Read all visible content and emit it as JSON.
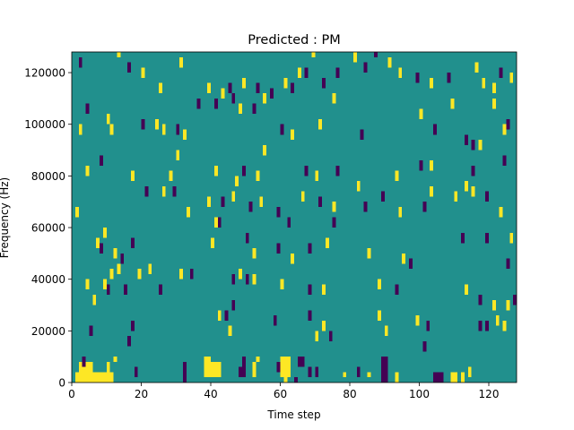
{
  "chart_data": {
    "type": "heatmap",
    "title": "Predicted : PM",
    "xlabel": "Time step",
    "ylabel": "Frequency (Hz)",
    "xlim": [
      0,
      128
    ],
    "ylim": [
      0,
      128000
    ],
    "xticks": [
      0,
      20,
      40,
      60,
      80,
      100,
      120
    ],
    "yticks": [
      0,
      20000,
      40000,
      60000,
      80000,
      100000,
      120000
    ],
    "grid": false,
    "colormap": "viridis",
    "colors": {
      "background": "#21908d",
      "high": "#fde725",
      "low": "#440154"
    },
    "background_value": 0,
    "cells_units": "[time_step_start, time_step_end, freq_start_hz, freq_end_hz, value]",
    "cells": [
      [
        1,
        12,
        0,
        4000,
        1
      ],
      [
        2,
        4,
        4000,
        8000,
        1
      ],
      [
        4,
        6,
        4000,
        8000,
        1
      ],
      [
        10,
        11,
        4000,
        8000,
        1
      ],
      [
        32,
        33,
        0,
        8000,
        -1
      ],
      [
        39,
        43,
        6000,
        8000,
        1
      ],
      [
        38,
        43,
        2000,
        6000,
        1
      ],
      [
        38,
        40,
        6000,
        10000,
        1
      ],
      [
        49,
        50,
        6000,
        10000,
        -1
      ],
      [
        48,
        50,
        2000,
        6000,
        -1
      ],
      [
        52,
        53,
        2000,
        8000,
        1
      ],
      [
        53,
        54,
        8000,
        10000,
        1
      ],
      [
        59,
        60,
        4000,
        8000,
        -1
      ],
      [
        60,
        63,
        2000,
        10000,
        1
      ],
      [
        61,
        62,
        0,
        2000,
        1
      ],
      [
        64,
        65,
        0,
        2000,
        -1
      ],
      [
        65,
        67,
        6000,
        10000,
        -1
      ],
      [
        68,
        69,
        2000,
        6000,
        -1
      ],
      [
        70,
        71,
        2000,
        6000,
        -1
      ],
      [
        78,
        79,
        2000,
        4000,
        1
      ],
      [
        82,
        83,
        2000,
        6000,
        -1
      ],
      [
        85,
        86,
        2000,
        4000,
        1
      ],
      [
        89,
        91,
        0,
        10000,
        -1
      ],
      [
        93,
        94,
        0,
        4000,
        1
      ],
      [
        104,
        107,
        0,
        4000,
        -1
      ],
      [
        109,
        111,
        0,
        4000,
        1
      ],
      [
        112,
        113,
        0,
        4000,
        1
      ],
      [
        114,
        115,
        2000,
        6000,
        1
      ],
      [
        3,
        4,
        6000,
        10000,
        -1
      ],
      [
        12,
        13,
        8000,
        10000,
        1
      ],
      [
        18,
        19,
        2000,
        6000,
        -1
      ],
      [
        5,
        6,
        18000,
        22000,
        -1
      ],
      [
        16,
        17,
        14000,
        18000,
        -1
      ],
      [
        17,
        18,
        20000,
        24000,
        -1
      ],
      [
        42,
        43,
        24000,
        28000,
        1
      ],
      [
        44,
        45,
        24000,
        28000,
        -1
      ],
      [
        45,
        46,
        18000,
        22000,
        1
      ],
      [
        46,
        47,
        28000,
        32000,
        -1
      ],
      [
        58,
        59,
        22000,
        26000,
        -1
      ],
      [
        68,
        69,
        24000,
        28000,
        -1
      ],
      [
        70,
        71,
        16000,
        20000,
        1
      ],
      [
        72,
        73,
        20000,
        24000,
        1
      ],
      [
        74,
        75,
        16000,
        20000,
        -1
      ],
      [
        88,
        89,
        24000,
        28000,
        1
      ],
      [
        90,
        91,
        18000,
        22000,
        1
      ],
      [
        99,
        100,
        22000,
        26000,
        1
      ],
      [
        101,
        102,
        12000,
        16000,
        -1
      ],
      [
        102,
        103,
        20000,
        24000,
        -1
      ],
      [
        117,
        118,
        20000,
        24000,
        -1
      ],
      [
        119,
        120,
        20000,
        24000,
        -1
      ],
      [
        122,
        123,
        22000,
        26000,
        1
      ],
      [
        124,
        125,
        20000,
        24000,
        1
      ],
      [
        4,
        5,
        36000,
        40000,
        1
      ],
      [
        6,
        7,
        30000,
        34000,
        1
      ],
      [
        9,
        10,
        36000,
        40000,
        1
      ],
      [
        10,
        11,
        34000,
        38000,
        -1
      ],
      [
        11,
        12,
        40000,
        44000,
        1
      ],
      [
        13,
        14,
        42000,
        46000,
        1
      ],
      [
        15,
        16,
        34000,
        38000,
        -1
      ],
      [
        19,
        20,
        40000,
        44000,
        1
      ],
      [
        22,
        23,
        42000,
        46000,
        1
      ],
      [
        25,
        26,
        34000,
        38000,
        -1
      ],
      [
        31,
        32,
        40000,
        44000,
        1
      ],
      [
        34,
        35,
        40000,
        44000,
        -1
      ],
      [
        46,
        47,
        38000,
        42000,
        -1
      ],
      [
        48,
        49,
        40000,
        44000,
        1
      ],
      [
        50,
        51,
        38000,
        42000,
        -1
      ],
      [
        52,
        53,
        38000,
        42000,
        1
      ],
      [
        60,
        61,
        36000,
        40000,
        1
      ],
      [
        68,
        69,
        34000,
        38000,
        -1
      ],
      [
        72,
        73,
        34000,
        38000,
        1
      ],
      [
        88,
        89,
        36000,
        40000,
        1
      ],
      [
        93,
        94,
        34000,
        38000,
        -1
      ],
      [
        113,
        114,
        34000,
        38000,
        1
      ],
      [
        117,
        118,
        30000,
        34000,
        -1
      ],
      [
        121,
        122,
        28000,
        32000,
        1
      ],
      [
        125,
        126,
        28000,
        32000,
        1
      ],
      [
        127,
        128,
        30000,
        34000,
        -1
      ],
      [
        8,
        9,
        50000,
        54000,
        -1
      ],
      [
        12,
        13,
        48000,
        52000,
        1
      ],
      [
        14,
        15,
        46000,
        50000,
        -1
      ],
      [
        17,
        18,
        52000,
        56000,
        -1
      ],
      [
        40,
        41,
        52000,
        56000,
        1
      ],
      [
        42,
        43,
        60000,
        64000,
        -1
      ],
      [
        50,
        51,
        54000,
        58000,
        -1
      ],
      [
        52,
        53,
        48000,
        52000,
        1
      ],
      [
        59,
        60,
        50000,
        54000,
        -1
      ],
      [
        63,
        64,
        46000,
        50000,
        1
      ],
      [
        68,
        69,
        50000,
        54000,
        -1
      ],
      [
        73,
        74,
        52000,
        56000,
        1
      ],
      [
        75,
        76,
        60000,
        64000,
        -1
      ],
      [
        85,
        86,
        48000,
        52000,
        1
      ],
      [
        95,
        96,
        46000,
        50000,
        1
      ],
      [
        97,
        98,
        44000,
        48000,
        -1
      ],
      [
        112,
        113,
        54000,
        58000,
        -1
      ],
      [
        119,
        120,
        54000,
        58000,
        -1
      ],
      [
        125,
        126,
        44000,
        48000,
        -1
      ],
      [
        126,
        127,
        54000,
        58000,
        1
      ],
      [
        1,
        2,
        64000,
        68000,
        1
      ],
      [
        7,
        8,
        52000,
        56000,
        1
      ],
      [
        9,
        10,
        56000,
        60000,
        1
      ],
      [
        21,
        22,
        72000,
        76000,
        -1
      ],
      [
        26,
        27,
        72000,
        76000,
        1
      ],
      [
        29,
        30,
        72000,
        76000,
        -1
      ],
      [
        33,
        34,
        64000,
        68000,
        1
      ],
      [
        39,
        40,
        68000,
        72000,
        1
      ],
      [
        41,
        42,
        60000,
        64000,
        1
      ],
      [
        43,
        44,
        68000,
        72000,
        -1
      ],
      [
        46,
        47,
        70000,
        74000,
        1
      ],
      [
        51,
        52,
        66000,
        70000,
        -1
      ],
      [
        54,
        55,
        68000,
        72000,
        1
      ],
      [
        59,
        60,
        64000,
        68000,
        -1
      ],
      [
        62,
        63,
        60000,
        64000,
        -1
      ],
      [
        66,
        67,
        70000,
        74000,
        1
      ],
      [
        71,
        72,
        68000,
        72000,
        -1
      ],
      [
        75,
        76,
        66000,
        70000,
        1
      ],
      [
        82,
        83,
        74000,
        78000,
        1
      ],
      [
        84,
        85,
        66000,
        70000,
        -1
      ],
      [
        89,
        90,
        70000,
        74000,
        -1
      ],
      [
        94,
        95,
        64000,
        68000,
        1
      ],
      [
        101,
        102,
        66000,
        70000,
        -1
      ],
      [
        103,
        104,
        72000,
        76000,
        1
      ],
      [
        110,
        111,
        70000,
        74000,
        1
      ],
      [
        115,
        116,
        72000,
        76000,
        1
      ],
      [
        119,
        120,
        70000,
        74000,
        -1
      ],
      [
        123,
        124,
        64000,
        68000,
        1
      ],
      [
        4,
        5,
        80000,
        84000,
        1
      ],
      [
        8,
        9,
        84000,
        88000,
        -1
      ],
      [
        17,
        18,
        78000,
        82000,
        1
      ],
      [
        28,
        29,
        78000,
        82000,
        1
      ],
      [
        30,
        31,
        86000,
        90000,
        1
      ],
      [
        41,
        42,
        80000,
        84000,
        1
      ],
      [
        47,
        48,
        76000,
        80000,
        1
      ],
      [
        49,
        50,
        80000,
        84000,
        -1
      ],
      [
        53,
        54,
        78000,
        82000,
        1
      ],
      [
        55,
        56,
        88000,
        92000,
        1
      ],
      [
        67,
        68,
        80000,
        84000,
        -1
      ],
      [
        70,
        71,
        78000,
        82000,
        1
      ],
      [
        76,
        77,
        80000,
        84000,
        -1
      ],
      [
        93,
        94,
        78000,
        82000,
        1
      ],
      [
        100,
        101,
        82000,
        86000,
        -1
      ],
      [
        103,
        104,
        82000,
        86000,
        1
      ],
      [
        113,
        114,
        74000,
        78000,
        1
      ],
      [
        115,
        116,
        80000,
        84000,
        -1
      ],
      [
        124,
        125,
        84000,
        88000,
        -1
      ],
      [
        2,
        3,
        96000,
        100000,
        1
      ],
      [
        4,
        5,
        104000,
        108000,
        -1
      ],
      [
        10,
        11,
        100000,
        104000,
        1
      ],
      [
        11,
        12,
        96000,
        100000,
        1
      ],
      [
        20,
        21,
        98000,
        102000,
        -1
      ],
      [
        24,
        25,
        98000,
        102000,
        1
      ],
      [
        26,
        27,
        96000,
        100000,
        1
      ],
      [
        30,
        31,
        96000,
        100000,
        -1
      ],
      [
        32,
        33,
        94000,
        98000,
        1
      ],
      [
        36,
        37,
        106000,
        110000,
        -1
      ],
      [
        41,
        42,
        106000,
        110000,
        -1
      ],
      [
        43,
        44,
        110000,
        114000,
        1
      ],
      [
        46,
        47,
        108000,
        112000,
        -1
      ],
      [
        48,
        49,
        104000,
        108000,
        1
      ],
      [
        52,
        53,
        104000,
        108000,
        -1
      ],
      [
        55,
        56,
        108000,
        112000,
        1
      ],
      [
        57,
        58,
        110000,
        114000,
        -1
      ],
      [
        60,
        61,
        96000,
        100000,
        -1
      ],
      [
        63,
        64,
        94000,
        98000,
        1
      ],
      [
        71,
        72,
        98000,
        102000,
        1
      ],
      [
        75,
        76,
        108000,
        112000,
        1
      ],
      [
        83,
        84,
        94000,
        98000,
        -1
      ],
      [
        100,
        101,
        102000,
        106000,
        1
      ],
      [
        104,
        105,
        96000,
        100000,
        -1
      ],
      [
        109,
        110,
        106000,
        110000,
        1
      ],
      [
        113,
        114,
        92000,
        96000,
        -1
      ],
      [
        115,
        116,
        90000,
        94000,
        -1
      ],
      [
        117,
        118,
        90000,
        94000,
        1
      ],
      [
        121,
        122,
        106000,
        110000,
        1
      ],
      [
        124,
        125,
        96000,
        100000,
        1
      ],
      [
        125,
        126,
        98000,
        102000,
        -1
      ],
      [
        2,
        3,
        122000,
        126000,
        -1
      ],
      [
        13,
        14,
        126000,
        128000,
        1
      ],
      [
        16,
        17,
        120000,
        124000,
        -1
      ],
      [
        20,
        21,
        118000,
        122000,
        1
      ],
      [
        25,
        26,
        112000,
        116000,
        1
      ],
      [
        31,
        32,
        122000,
        126000,
        1
      ],
      [
        39,
        40,
        112000,
        116000,
        1
      ],
      [
        45,
        46,
        112000,
        116000,
        -1
      ],
      [
        49,
        50,
        114000,
        118000,
        1
      ],
      [
        53,
        54,
        112000,
        116000,
        -1
      ],
      [
        61,
        62,
        114000,
        118000,
        1
      ],
      [
        63,
        64,
        112000,
        116000,
        -1
      ],
      [
        65,
        66,
        118000,
        122000,
        1
      ],
      [
        67,
        68,
        118000,
        122000,
        -1
      ],
      [
        69,
        70,
        126000,
        128000,
        1
      ],
      [
        72,
        73,
        114000,
        118000,
        -1
      ],
      [
        76,
        77,
        118000,
        122000,
        -1
      ],
      [
        81,
        82,
        124000,
        128000,
        1
      ],
      [
        84,
        85,
        120000,
        124000,
        -1
      ],
      [
        87,
        88,
        126000,
        128000,
        -1
      ],
      [
        91,
        92,
        122000,
        126000,
        1
      ],
      [
        94,
        95,
        118000,
        122000,
        1
      ],
      [
        99,
        100,
        116000,
        120000,
        -1
      ],
      [
        103,
        104,
        114000,
        118000,
        1
      ],
      [
        108,
        109,
        116000,
        120000,
        -1
      ],
      [
        116,
        117,
        120000,
        124000,
        1
      ],
      [
        118,
        119,
        114000,
        118000,
        1
      ],
      [
        121,
        122,
        112000,
        116000,
        1
      ],
      [
        123,
        124,
        118000,
        122000,
        -1
      ],
      [
        126,
        127,
        116000,
        120000,
        1
      ]
    ]
  }
}
